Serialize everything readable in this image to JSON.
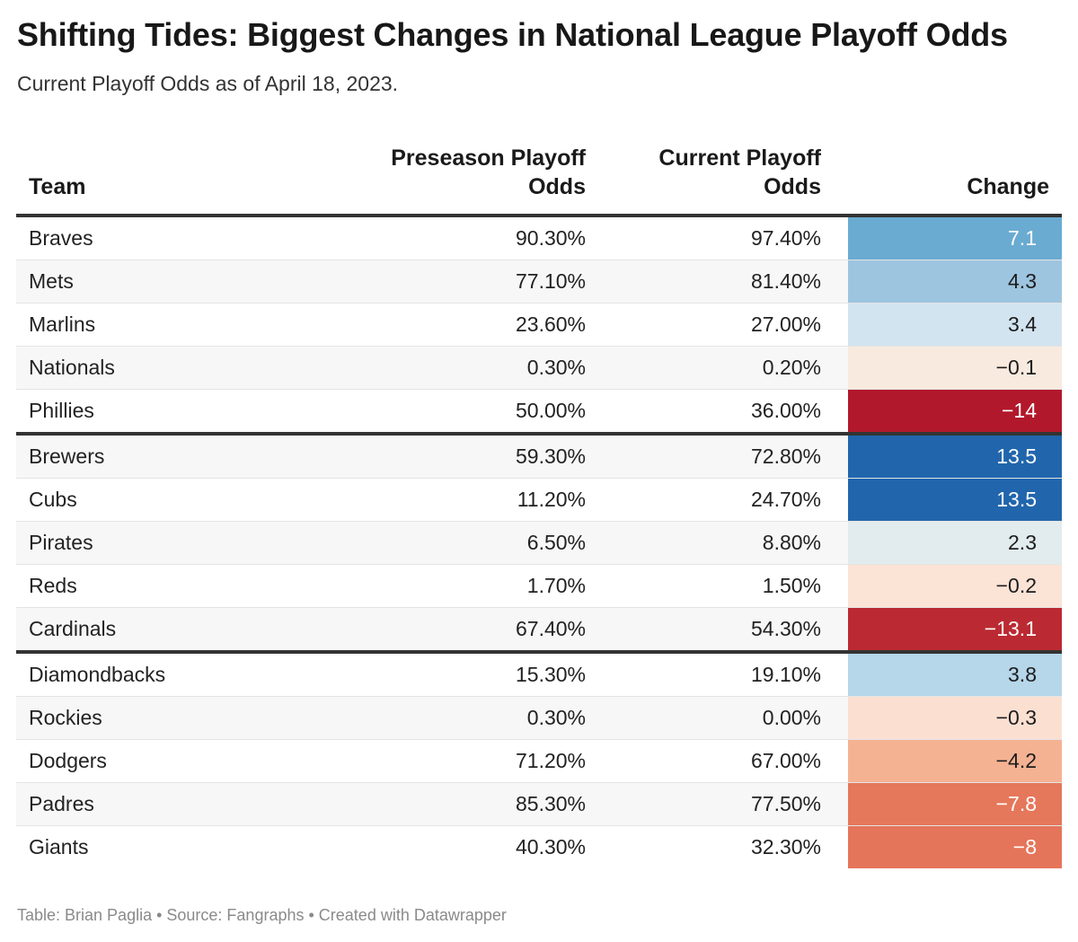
{
  "title": "Shifting Tides: Biggest Changes in National League Playoff Odds",
  "subtitle": "Current Playoff Odds as of April 18, 2023.",
  "footer": "Table: Brian Paglia • Source: Fangraphs • Created with Datawrapper",
  "chart_data": {
    "type": "table",
    "columns": [
      "Team",
      "Preseason Playoff Odds",
      "Current Playoff Odds",
      "Change"
    ],
    "rows": [
      {
        "team": "Braves",
        "pre": "90.30%",
        "cur": "97.40%",
        "change": "7.1",
        "group_start": false,
        "cell_color": "#6aabd2",
        "text_color": "#ffffff"
      },
      {
        "team": "Mets",
        "pre": "77.10%",
        "cur": "81.40%",
        "change": "4.3",
        "group_start": false,
        "cell_color": "#9ec5df",
        "text_color": "#1d1d1d"
      },
      {
        "team": "Marlins",
        "pre": "23.60%",
        "cur": "27.00%",
        "change": "3.4",
        "group_start": false,
        "cell_color": "#d3e4f1",
        "text_color": "#1d1d1d"
      },
      {
        "team": "Nationals",
        "pre": "0.30%",
        "cur": "0.20%",
        "change": "−0.1",
        "group_start": false,
        "cell_color": "#f8eadf",
        "text_color": "#1d1d1d"
      },
      {
        "team": "Phillies",
        "pre": "50.00%",
        "cur": "36.00%",
        "change": "−14",
        "group_start": false,
        "cell_color": "#b2182b",
        "text_color": "#ffffff"
      },
      {
        "team": "Brewers",
        "pre": "59.30%",
        "cur": "72.80%",
        "change": "13.5",
        "group_start": true,
        "cell_color": "#2166ac",
        "text_color": "#ffffff"
      },
      {
        "team": "Cubs",
        "pre": "11.20%",
        "cur": "24.70%",
        "change": "13.5",
        "group_start": false,
        "cell_color": "#2166ac",
        "text_color": "#ffffff"
      },
      {
        "team": "Pirates",
        "pre": "6.50%",
        "cur": "8.80%",
        "change": "2.3",
        "group_start": false,
        "cell_color": "#e2ecee",
        "text_color": "#1d1d1d"
      },
      {
        "team": "Reds",
        "pre": "1.70%",
        "cur": "1.50%",
        "change": "−0.2",
        "group_start": false,
        "cell_color": "#fbe3d6",
        "text_color": "#1d1d1d"
      },
      {
        "team": "Cardinals",
        "pre": "67.40%",
        "cur": "54.30%",
        "change": "−13.1",
        "group_start": false,
        "cell_color": "#bb2a33",
        "text_color": "#ffffff"
      },
      {
        "team": "Diamondbacks",
        "pre": "15.30%",
        "cur": "19.10%",
        "change": "3.8",
        "group_start": true,
        "cell_color": "#b6d6e9",
        "text_color": "#1d1d1d"
      },
      {
        "team": "Rockies",
        "pre": "0.30%",
        "cur": "0.00%",
        "change": "−0.3",
        "group_start": false,
        "cell_color": "#fbe0d2",
        "text_color": "#1d1d1d"
      },
      {
        "team": "Dodgers",
        "pre": "71.20%",
        "cur": "67.00%",
        "change": "−4.2",
        "group_start": false,
        "cell_color": "#f5b293",
        "text_color": "#1d1d1d"
      },
      {
        "team": "Padres",
        "pre": "85.30%",
        "cur": "77.50%",
        "change": "−7.8",
        "group_start": false,
        "cell_color": "#e5775b",
        "text_color": "#ffffff"
      },
      {
        "team": "Giants",
        "pre": "40.30%",
        "cur": "32.30%",
        "change": "−8",
        "group_start": false,
        "cell_color": "#e5755a",
        "text_color": "#ffffff"
      }
    ]
  }
}
